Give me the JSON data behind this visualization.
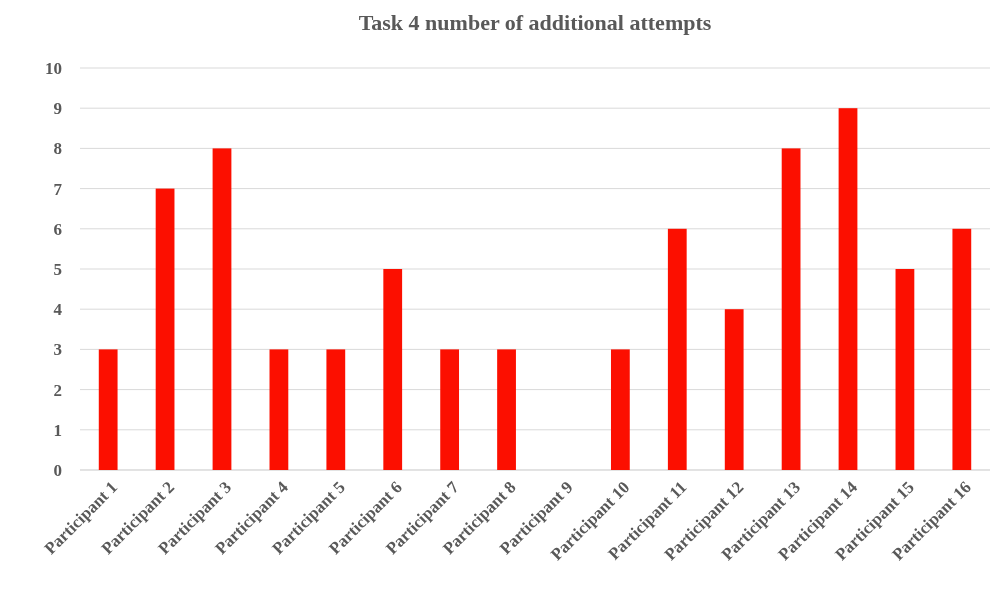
{
  "chart_data": {
    "type": "bar",
    "title": "Task 4 number of additional attempts",
    "categories": [
      "Participant 1",
      "Participant 2",
      "Participant 3",
      "Participant 4",
      "Participant 5",
      "Participant 6",
      "Participant 7",
      "Participant 8",
      "Participant 9",
      "Participant 10",
      "Participant 11",
      "Participant 12",
      "Participant 13",
      "Participant 14",
      "Participant 15",
      "Participant 16"
    ],
    "values": [
      3,
      7,
      8,
      3,
      3,
      5,
      3,
      3,
      0,
      3,
      6,
      4,
      8,
      9,
      5,
      6
    ],
    "color": "#fc0f00",
    "ylim": [
      0,
      10
    ],
    "yticks": [
      0,
      1,
      2,
      3,
      4,
      5,
      6,
      7,
      8,
      9,
      10
    ],
    "grid": "y"
  }
}
